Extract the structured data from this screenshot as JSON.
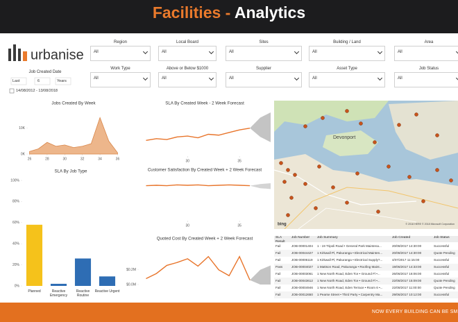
{
  "header": {
    "title_accent": "Facilities -",
    "title": "Analytics"
  },
  "logo": "urbanise",
  "date_filter": {
    "label": "Job Created Date",
    "period": "Last",
    "count": "6",
    "unit": "Years",
    "range": "14/08/2012 - 13/08/2018"
  },
  "filters": [
    {
      "label": "Region",
      "value": "All"
    },
    {
      "label": "Local Board",
      "value": "All"
    },
    {
      "label": "Sites",
      "value": "All"
    },
    {
      "label": "Building / Land",
      "value": "All"
    },
    {
      "label": "Area",
      "value": "All"
    },
    {
      "label": "Work Type",
      "value": "All"
    },
    {
      "label": "Above or Below $1000",
      "value": "All"
    },
    {
      "label": "Supplier",
      "value": "All"
    },
    {
      "label": "Asset Type",
      "value": "All"
    },
    {
      "label": "Job Status",
      "value": "All"
    }
  ],
  "chart_data": [
    {
      "type": "area",
      "title": "Jobs Created By Week",
      "x": [
        26,
        27,
        28,
        29,
        30,
        31,
        32,
        33,
        34,
        35,
        36
      ],
      "values": [
        1000,
        2000,
        4500,
        3000,
        3500,
        2500,
        3000,
        4000,
        14000,
        5000,
        500
      ],
      "color": "#e8a46e",
      "xlim": [
        25.8,
        36.2
      ],
      "xticks": [
        26,
        28,
        30,
        32,
        34,
        36
      ],
      "ylim": [
        0,
        16000
      ],
      "yticks": [
        {
          "value": 0,
          "label": "0K"
        },
        {
          "value": 10000,
          "label": "10K"
        }
      ]
    },
    {
      "type": "line",
      "title": "SLA By Created Week - 2 Week Forecast",
      "x": [
        26,
        27,
        28,
        29,
        30,
        31,
        32,
        33,
        34,
        35,
        36
      ],
      "values": [
        58,
        60,
        59,
        62,
        63,
        61,
        65,
        64,
        67,
        70,
        72
      ],
      "color": "#e8742a",
      "forecast": {
        "x": [
          36,
          37,
          38
        ],
        "lower": [
          72,
          62,
          56
        ],
        "upper": [
          72,
          84,
          90
        ],
        "color": "#c4c4c4"
      },
      "xlim": [
        25.3,
        38
      ],
      "xticks": [
        30,
        35
      ],
      "ylim": [
        40,
        90
      ]
    },
    {
      "type": "bar",
      "title": "SLA By Job Type",
      "categories": [
        "Planned",
        "Reactive Emergency",
        "Reactive Routine",
        "Reactive Urgent"
      ],
      "values": [
        58,
        2,
        26,
        9
      ],
      "colors": [
        "#f5c21b",
        "#2e6db4",
        "#2e6db4",
        "#2e6db4"
      ],
      "ylim": [
        0,
        100
      ],
      "yticks": [
        {
          "value": 0,
          "label": "0%"
        },
        {
          "value": 20,
          "label": "20%"
        },
        {
          "value": 40,
          "label": "40%"
        },
        {
          "value": 60,
          "label": "60%"
        },
        {
          "value": 80,
          "label": "80%"
        },
        {
          "value": 100,
          "label": "100%"
        }
      ]
    },
    {
      "type": "line",
      "title": "Customer Satisfaction By Created Week + 2 Week Forecast",
      "x": [
        26,
        27,
        28,
        29,
        30,
        31,
        32,
        33,
        34,
        35,
        36
      ],
      "values": [
        4.2,
        4.25,
        4.2,
        4.3,
        4.25,
        4.3,
        4.2,
        4.25,
        4.3,
        4.25,
        4.2
      ],
      "color": "#e8742a",
      "forecast": {
        "x": [
          36,
          37,
          38
        ],
        "lower": [
          4.2,
          3.9,
          3.8
        ],
        "upper": [
          4.2,
          4.4,
          4.5
        ],
        "color": "#d4d4d4"
      },
      "xlim": [
        25.3,
        38
      ],
      "xticks": [
        30,
        35
      ],
      "ylim": [
        0,
        5
      ]
    },
    {
      "type": "line",
      "title": "Quoted Cost By Created Week + 2 Week Forecast",
      "x": [
        26,
        27,
        28,
        29,
        30,
        31,
        32,
        33,
        34,
        35,
        36
      ],
      "values": [
        80000,
        150000,
        260000,
        300000,
        350000,
        250000,
        380000,
        200000,
        120000,
        380000,
        60000
      ],
      "color": "#e8742a",
      "forecast": {
        "x": [
          36,
          37,
          38
        ],
        "lower": [
          60000,
          0,
          0
        ],
        "upper": [
          60000,
          200000,
          260000
        ],
        "color": "#c4c4c4"
      },
      "xlim": [
        25.3,
        38
      ],
      "ylim": [
        0,
        500000
      ],
      "yticks": [
        {
          "value": 0,
          "label": "$0.0M"
        },
        {
          "value": 200000,
          "label": "$0.2M"
        }
      ]
    }
  ],
  "map": {
    "place": "Devonport",
    "provider": "bing",
    "copyright": "© 2018 HERE © 2018 Microsoft Corporation"
  },
  "table": {
    "columns": [
      "SLA Result",
      "Job Number",
      "Job Summary",
      "Job Created",
      "Job Status"
    ],
    "rows": [
      [
        "Fail",
        "JOB-00001404",
        "1 - 19 Tripoli Road • General Park Maintena...",
        "20/08/2017 14:30:00",
        "Successful"
      ],
      [
        "Fail",
        "JOB-00044427",
        "1 Kirkwall Pl, Pakuranga • Electrical Mainten...",
        "20/08/2017 14:30:00",
        "Quote Pending"
      ],
      [
        "Fail",
        "JOB-00006119",
        "1 Kirkwall Pl, Pakuranga • Electrical Supply?...",
        "4/07/2017 11:15:00",
        "Successful"
      ],
      [
        "Pass",
        "JOB-00004027",
        "1 Mattson Road, Pakuranga • Roofing Maint...",
        "19/06/2017 14:33:00",
        "Successful"
      ],
      [
        "Fail",
        "JOB-00003061",
        "1 New North Road, Eden Tce • Ground Fl •...",
        "26/06/2017 16:06:00",
        "Successful"
      ],
      [
        "Fail",
        "JOB-00043612",
        "1 New North Road, Eden Tce • Ground Fl •...",
        "22/08/2017 15:09:00",
        "Quote Pending"
      ],
      [
        "Fail",
        "JOB-00004946",
        "1 New North Road, Eden Terrace • Room 6 •...",
        "22/08/2017 11:00:00",
        "Quote Pending"
      ],
      [
        "Fail",
        "JOB-00012650",
        "1 Pearse Street • Third Party • Carpentry Ma...",
        "29/06/2017 10:12:00",
        "Successful"
      ]
    ]
  },
  "footer": "NOW EVERY BUILDING CAN BE SM"
}
